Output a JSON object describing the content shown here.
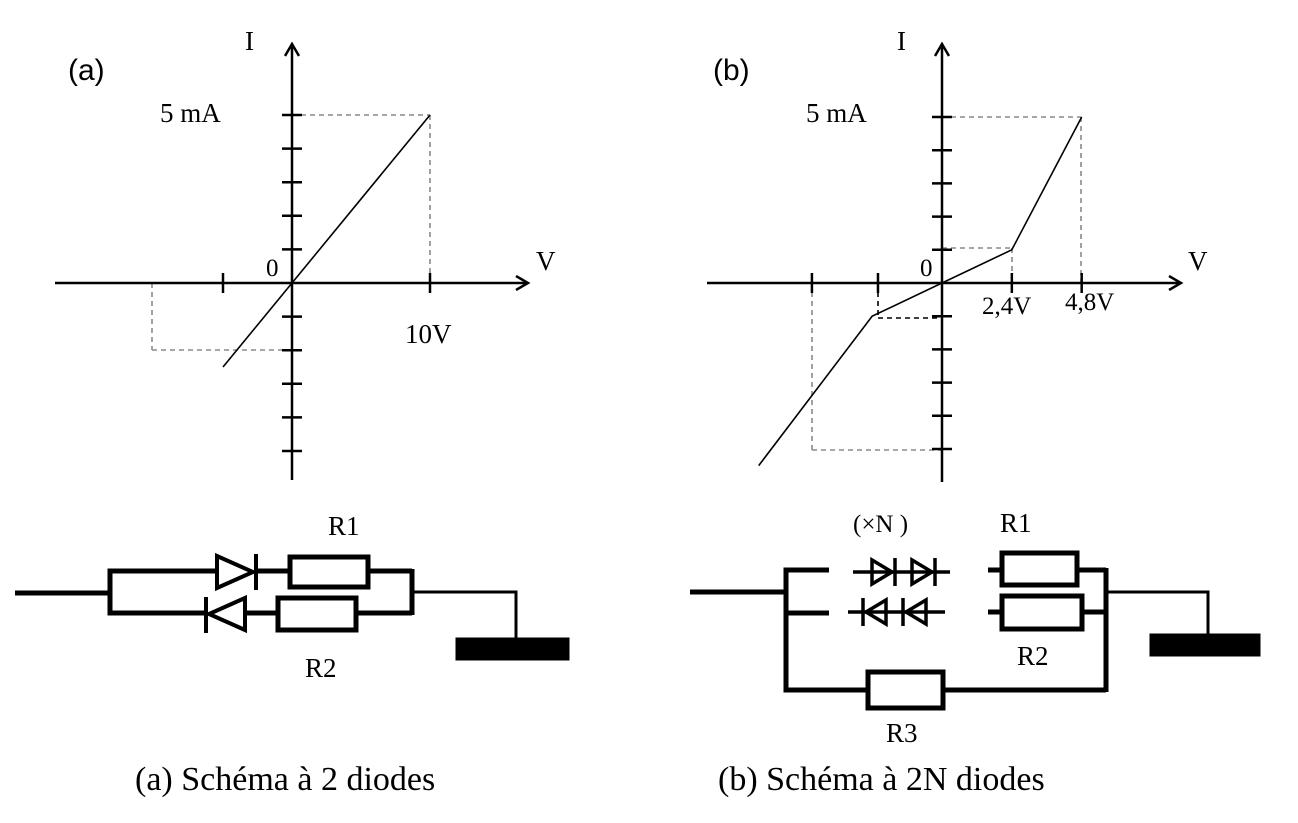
{
  "panel_a": {
    "label": "(a)",
    "y_axis_label": "I",
    "x_axis_label": "V",
    "origin_label": "0",
    "y_tick_label": "5 mA",
    "x_tick_label": "10V",
    "curve": [
      [
        -5,
        -2.5
      ],
      [
        0,
        0
      ],
      [
        10,
        5
      ]
    ],
    "y_ticks_per_ma": 1,
    "r1_label": "R1",
    "r2_label": "R2",
    "caption": "(a) Schéma à 2 diodes"
  },
  "panel_b": {
    "label": "(b)",
    "y_axis_label": "I",
    "x_axis_label": "V",
    "origin_label": "0",
    "y_tick_label": "5 mA",
    "x_tick_label_1": "2,4V",
    "x_tick_label_2": "4,8V",
    "curve": [
      [
        -6.3,
        -5.5
      ],
      [
        -2.4,
        -1
      ],
      [
        0,
        0
      ],
      [
        2.4,
        1
      ],
      [
        4.8,
        5
      ]
    ],
    "diode_count_label": "(×N )",
    "r1_label": "R1",
    "r2_label": "R2",
    "r3_label": "R3",
    "caption": "(b) Schéma à 2N diodes"
  },
  "colors": {
    "stroke": "#000000",
    "guide": "#8a8a8a"
  }
}
